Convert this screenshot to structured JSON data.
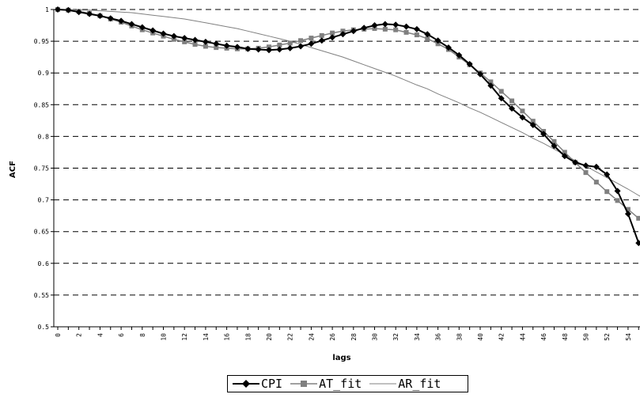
{
  "chart_data": {
    "type": "line",
    "xlabel": "lags",
    "ylabel": "ACF",
    "xlim": [
      0,
      55
    ],
    "ylim": [
      0.5,
      1
    ],
    "y_ticks": [
      "0.5",
      "0.55",
      "0.6",
      "0.65",
      "0.7",
      "0.75",
      "0.8",
      "0.85",
      "0.9",
      "0.95",
      "1"
    ],
    "x_ticks": [
      "0",
      "2",
      "4",
      "6",
      "8",
      "10",
      "12",
      "14",
      "16",
      "18",
      "20",
      "22",
      "24",
      "26",
      "28",
      "30",
      "32",
      "34",
      "36",
      "38",
      "40",
      "42",
      "44",
      "46",
      "48",
      "50",
      "52",
      "54"
    ],
    "grid": "horizontal dashed",
    "legend_position": "bottom-center",
    "series": [
      {
        "name": "CPI",
        "color": "#000000",
        "marker": "diamond",
        "x": [
          0,
          1,
          2,
          3,
          4,
          5,
          6,
          7,
          8,
          9,
          10,
          11,
          12,
          13,
          14,
          15,
          16,
          17,
          18,
          19,
          20,
          21,
          22,
          23,
          24,
          25,
          26,
          27,
          28,
          29,
          30,
          31,
          32,
          33,
          34,
          35,
          36,
          37,
          38,
          39,
          40,
          41,
          42,
          43,
          44,
          45,
          46,
          47,
          48,
          49,
          50,
          51,
          52,
          53,
          54,
          55
        ],
        "values": [
          1.0,
          0.999,
          0.996,
          0.993,
          0.99,
          0.986,
          0.982,
          0.977,
          0.972,
          0.967,
          0.962,
          0.958,
          0.955,
          0.952,
          0.949,
          0.946,
          0.943,
          0.941,
          0.938,
          0.937,
          0.936,
          0.937,
          0.939,
          0.942,
          0.946,
          0.951,
          0.956,
          0.961,
          0.966,
          0.971,
          0.975,
          0.977,
          0.976,
          0.973,
          0.969,
          0.961,
          0.951,
          0.94,
          0.928,
          0.914,
          0.898,
          0.88,
          0.86,
          0.844,
          0.83,
          0.818,
          0.804,
          0.785,
          0.769,
          0.759,
          0.754,
          0.752,
          0.74,
          0.714,
          0.678,
          0.632
        ]
      },
      {
        "name": "AT_fit",
        "color": "#808080",
        "marker": "square",
        "x": [
          0,
          1,
          2,
          3,
          4,
          5,
          6,
          7,
          8,
          9,
          10,
          11,
          12,
          13,
          14,
          15,
          16,
          17,
          18,
          19,
          20,
          21,
          22,
          23,
          24,
          25,
          26,
          27,
          28,
          29,
          30,
          31,
          32,
          33,
          34,
          35,
          36,
          37,
          38,
          39,
          40,
          41,
          42,
          43,
          44,
          45,
          46,
          47,
          48,
          49,
          50,
          51,
          52,
          53,
          54,
          55
        ],
        "values": [
          1.0,
          0.999,
          0.997,
          0.994,
          0.99,
          0.985,
          0.98,
          0.974,
          0.968,
          0.963,
          0.958,
          0.953,
          0.949,
          0.945,
          0.942,
          0.94,
          0.939,
          0.938,
          0.938,
          0.939,
          0.941,
          0.944,
          0.947,
          0.951,
          0.955,
          0.959,
          0.963,
          0.966,
          0.968,
          0.969,
          0.97,
          0.969,
          0.968,
          0.964,
          0.96,
          0.954,
          0.946,
          0.937,
          0.925,
          0.913,
          0.9,
          0.886,
          0.871,
          0.856,
          0.84,
          0.824,
          0.808,
          0.792,
          0.775,
          0.759,
          0.743,
          0.728,
          0.713,
          0.699,
          0.685,
          0.671
        ]
      },
      {
        "name": "AR_fit",
        "color": "#808080",
        "marker": "none",
        "x": [
          0,
          1,
          2,
          3,
          4,
          5,
          6,
          7,
          8,
          9,
          10,
          11,
          12,
          13,
          14,
          15,
          16,
          17,
          18,
          19,
          20,
          21,
          22,
          23,
          24,
          25,
          26,
          27,
          28,
          29,
          30,
          31,
          32,
          33,
          34,
          35,
          36,
          37,
          38,
          39,
          40,
          41,
          42,
          43,
          44,
          45,
          46,
          47,
          48,
          49,
          50,
          51,
          52,
          53,
          54,
          55,
          56
        ],
        "values": [
          1.0,
          1.0,
          0.999,
          0.999,
          0.998,
          0.997,
          0.996,
          0.995,
          0.993,
          0.991,
          0.989,
          0.987,
          0.985,
          0.982,
          0.979,
          0.976,
          0.973,
          0.97,
          0.966,
          0.962,
          0.958,
          0.954,
          0.95,
          0.945,
          0.94,
          0.935,
          0.93,
          0.925,
          0.919,
          0.913,
          0.907,
          0.901,
          0.895,
          0.888,
          0.881,
          0.875,
          0.867,
          0.86,
          0.853,
          0.845,
          0.838,
          0.83,
          0.822,
          0.814,
          0.806,
          0.797,
          0.789,
          0.78,
          0.771,
          0.762,
          0.753,
          0.744,
          0.735,
          0.726,
          0.717,
          0.707,
          0.698
        ]
      }
    ]
  }
}
